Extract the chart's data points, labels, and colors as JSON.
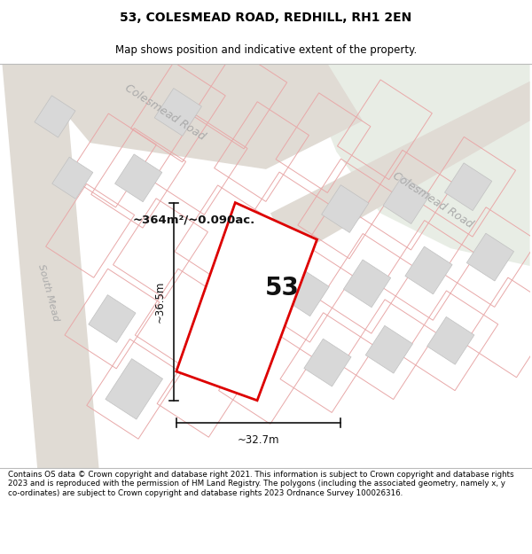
{
  "title": "53, COLESMEAD ROAD, REDHILL, RH1 2EN",
  "subtitle": "Map shows position and indicative extent of the property.",
  "footer": "Contains OS data © Crown copyright and database right 2021. This information is subject to Crown copyright and database rights 2023 and is reproduced with the permission of HM Land Registry. The polygons (including the associated geometry, namely x, y co-ordinates) are subject to Crown copyright and database rights 2023 Ordnance Survey 100026316.",
  "bg_color": "#f8f8f8",
  "green_color": "#e8ede5",
  "road_fill": "#e0dbd4",
  "road_edge": "#c8c4bc",
  "pink_line": "#e8a8a8",
  "building_fill": "#d8d8d8",
  "building_edge": "#c0c0c0",
  "plot_red": "#dd0000",
  "dim_color": "#111111",
  "text_dark": "#111111",
  "label_gray": "#aaaaaa",
  "area_label": "~364m²/~0.090ac.",
  "num_label": "53",
  "dim_v": "~36.5m",
  "dim_h": "~32.7m",
  "road_top": "Colesmead Road",
  "road_right": "Colesmead Road",
  "road_left": "South Mead"
}
